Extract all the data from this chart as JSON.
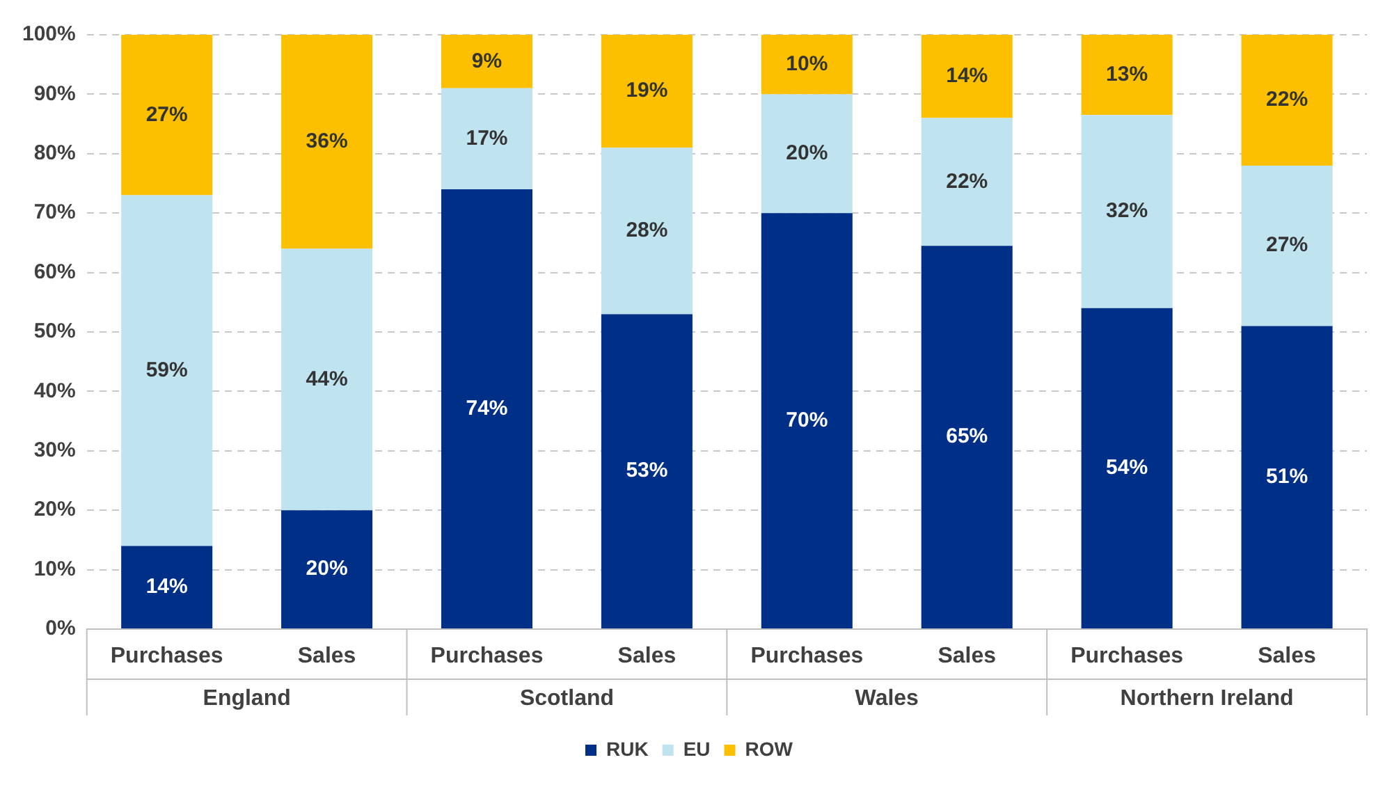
{
  "chart_data": {
    "type": "bar",
    "stacked": true,
    "categories": [
      "Purchases",
      "Sales",
      "Purchases",
      "Sales",
      "Purchases",
      "Sales",
      "Purchases",
      "Sales"
    ],
    "annotations": [
      "England",
      "Scotland",
      "Wales",
      "Northern Ireland"
    ],
    "series": [
      {
        "name": "RUK",
        "color": "#002f87",
        "values": [
          14,
          20,
          74,
          53,
          70,
          64.5,
          54,
          51
        ],
        "value_labels": [
          "14%",
          "20%",
          "74%",
          "53%",
          "70%",
          "65%",
          "54%",
          "51%"
        ]
      },
      {
        "name": "EU",
        "color": "#bfe4ef",
        "values": [
          59,
          44,
          17,
          28,
          20,
          21.5,
          32.5,
          27
        ],
        "value_labels": [
          "59%",
          "44%",
          "17%",
          "28%",
          "20%",
          "22%",
          "32%",
          "27%"
        ]
      },
      {
        "name": "ROW",
        "color": "#fcc000",
        "values": [
          27,
          36,
          9,
          19,
          10,
          14,
          13.5,
          22
        ],
        "value_labels": [
          "27%",
          "36%",
          "9%",
          "19%",
          "10%",
          "14%",
          "13%",
          "22%"
        ]
      }
    ],
    "ylim": [
      0,
      100
    ],
    "yticks": [
      {
        "value": 0,
        "label": "0%"
      },
      {
        "value": 10,
        "label": "10%"
      },
      {
        "value": 20,
        "label": "20%"
      },
      {
        "value": 30,
        "label": "30%"
      },
      {
        "value": 40,
        "label": "40%"
      },
      {
        "value": 50,
        "label": "50%"
      },
      {
        "value": 60,
        "label": "60%"
      },
      {
        "value": 70,
        "label": "70%"
      },
      {
        "value": 80,
        "label": "80%"
      },
      {
        "value": 90,
        "label": "90%"
      },
      {
        "value": 100,
        "label": "100%"
      }
    ],
    "grid": "y",
    "legend": "bottom"
  }
}
